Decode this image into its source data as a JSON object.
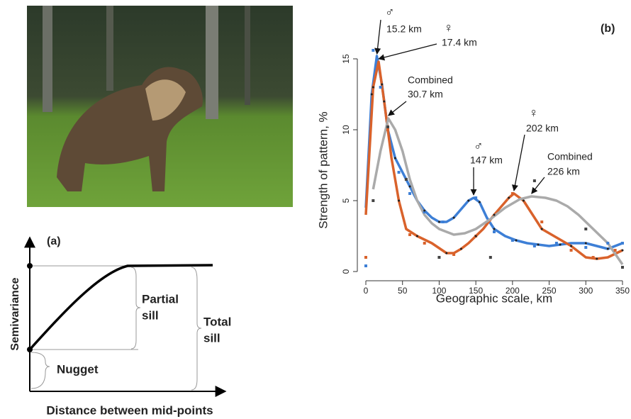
{
  "panel_a": {
    "label": "(a)",
    "y_label": "Semivariance",
    "x_label": "Distance between mid-points",
    "partial_sill": [
      "Partial",
      "sill"
    ],
    "total_sill": [
      "Total",
      "sill"
    ],
    "nugget": "Nugget"
  },
  "chart_data": {
    "type": "line",
    "panel_label": "(b)",
    "xlabel": "Geographic scale, km",
    "ylabel": "Strength of pattern, %",
    "xlim": [
      0,
      350
    ],
    "xticks": [
      0,
      50,
      100,
      150,
      200,
      250,
      300,
      350
    ],
    "ylim": [
      -0.6,
      18.6
    ],
    "yticks": [
      0,
      5,
      10,
      15
    ],
    "series": [
      {
        "color": "#3d7fd6",
        "x": [
          0,
          8,
          15,
          22,
          30,
          40,
          50,
          60,
          70,
          80,
          90,
          100,
          110,
          120,
          130,
          140,
          147,
          155,
          165,
          175,
          190,
          205,
          220,
          235,
          250,
          265,
          280,
          300,
          315,
          330,
          350
        ],
        "values": [
          4.5,
          12.5,
          15.2,
          13.2,
          10,
          8,
          7,
          6,
          5,
          4.3,
          3.8,
          3.5,
          3.5,
          3.8,
          4.4,
          5,
          5.2,
          4.9,
          3.8,
          3,
          2.5,
          2.2,
          2,
          1.9,
          1.8,
          1.9,
          2,
          2,
          1.8,
          1.6,
          2
        ],
        "points_x": [
          0,
          10,
          20,
          45,
          60,
          80,
          105,
          150,
          175,
          200,
          230,
          260,
          300,
          330,
          350
        ],
        "points_values": [
          0.4,
          15.6,
          13,
          7,
          5.5,
          4.2,
          3.5,
          5.2,
          2.8,
          2.2,
          1.8,
          2,
          1.7,
          2,
          2
        ]
      },
      {
        "color": "#d9622b",
        "x": [
          0,
          10,
          17.4,
          25,
          35,
          45,
          55,
          70,
          90,
          110,
          120,
          130,
          140,
          150,
          160,
          175,
          185,
          195,
          202,
          215,
          230,
          240,
          260,
          280,
          300,
          315,
          330,
          350
        ],
        "values": [
          4,
          13,
          14.8,
          12,
          8,
          5,
          3,
          2.5,
          2,
          1.3,
          1.3,
          1.6,
          2,
          2.5,
          3,
          4,
          4.6,
          5.2,
          5.5,
          5,
          3.8,
          3,
          2.4,
          1.8,
          1,
          0.9,
          1,
          1.5
        ],
        "points_x": [
          0,
          10,
          30,
          60,
          80,
          120,
          150,
          200,
          240,
          280,
          310,
          340
        ],
        "points_values": [
          1,
          13,
          10,
          2.6,
          2,
          1.2,
          2.5,
          5.5,
          3.5,
          1.5,
          1,
          1.5
        ]
      },
      {
        "color": "#aaaaaa",
        "x": [
          10,
          20,
          30.7,
          40,
          50,
          60,
          70,
          80,
          90,
          100,
          110,
          120,
          135,
          150,
          170,
          190,
          210,
          226,
          245,
          260,
          275,
          290,
          310,
          330,
          350
        ],
        "values": [
          5.8,
          8.5,
          10.8,
          10,
          8.5,
          6.5,
          5,
          4,
          3.4,
          3,
          2.8,
          2.6,
          2.7,
          3,
          3.7,
          4.5,
          5.1,
          5.3,
          5.2,
          5,
          4.6,
          4,
          3,
          2,
          0.5
        ],
        "points_x": [
          10,
          30,
          55,
          100,
          170,
          230,
          300,
          350
        ],
        "points_values": [
          5,
          10.2,
          6.5,
          1,
          1,
          6.4,
          3,
          0.3
        ]
      }
    ],
    "annotations": [
      {
        "heading": "♂",
        "label": "15.2 km",
        "x": 15.2,
        "series": 0
      },
      {
        "heading": "♀",
        "label": "17.4 km",
        "x": 17.4,
        "series": 1
      },
      {
        "heading": "Combined",
        "label": "30.7 km",
        "x": 30.7,
        "series": 2
      },
      {
        "heading": "♂",
        "label": "147 km",
        "x": 147,
        "series": 0
      },
      {
        "heading": "♀",
        "label": "202 km",
        "x": 202,
        "series": 1
      },
      {
        "heading": "Combined",
        "label": "226 km",
        "x": 226,
        "series": 2
      }
    ]
  }
}
